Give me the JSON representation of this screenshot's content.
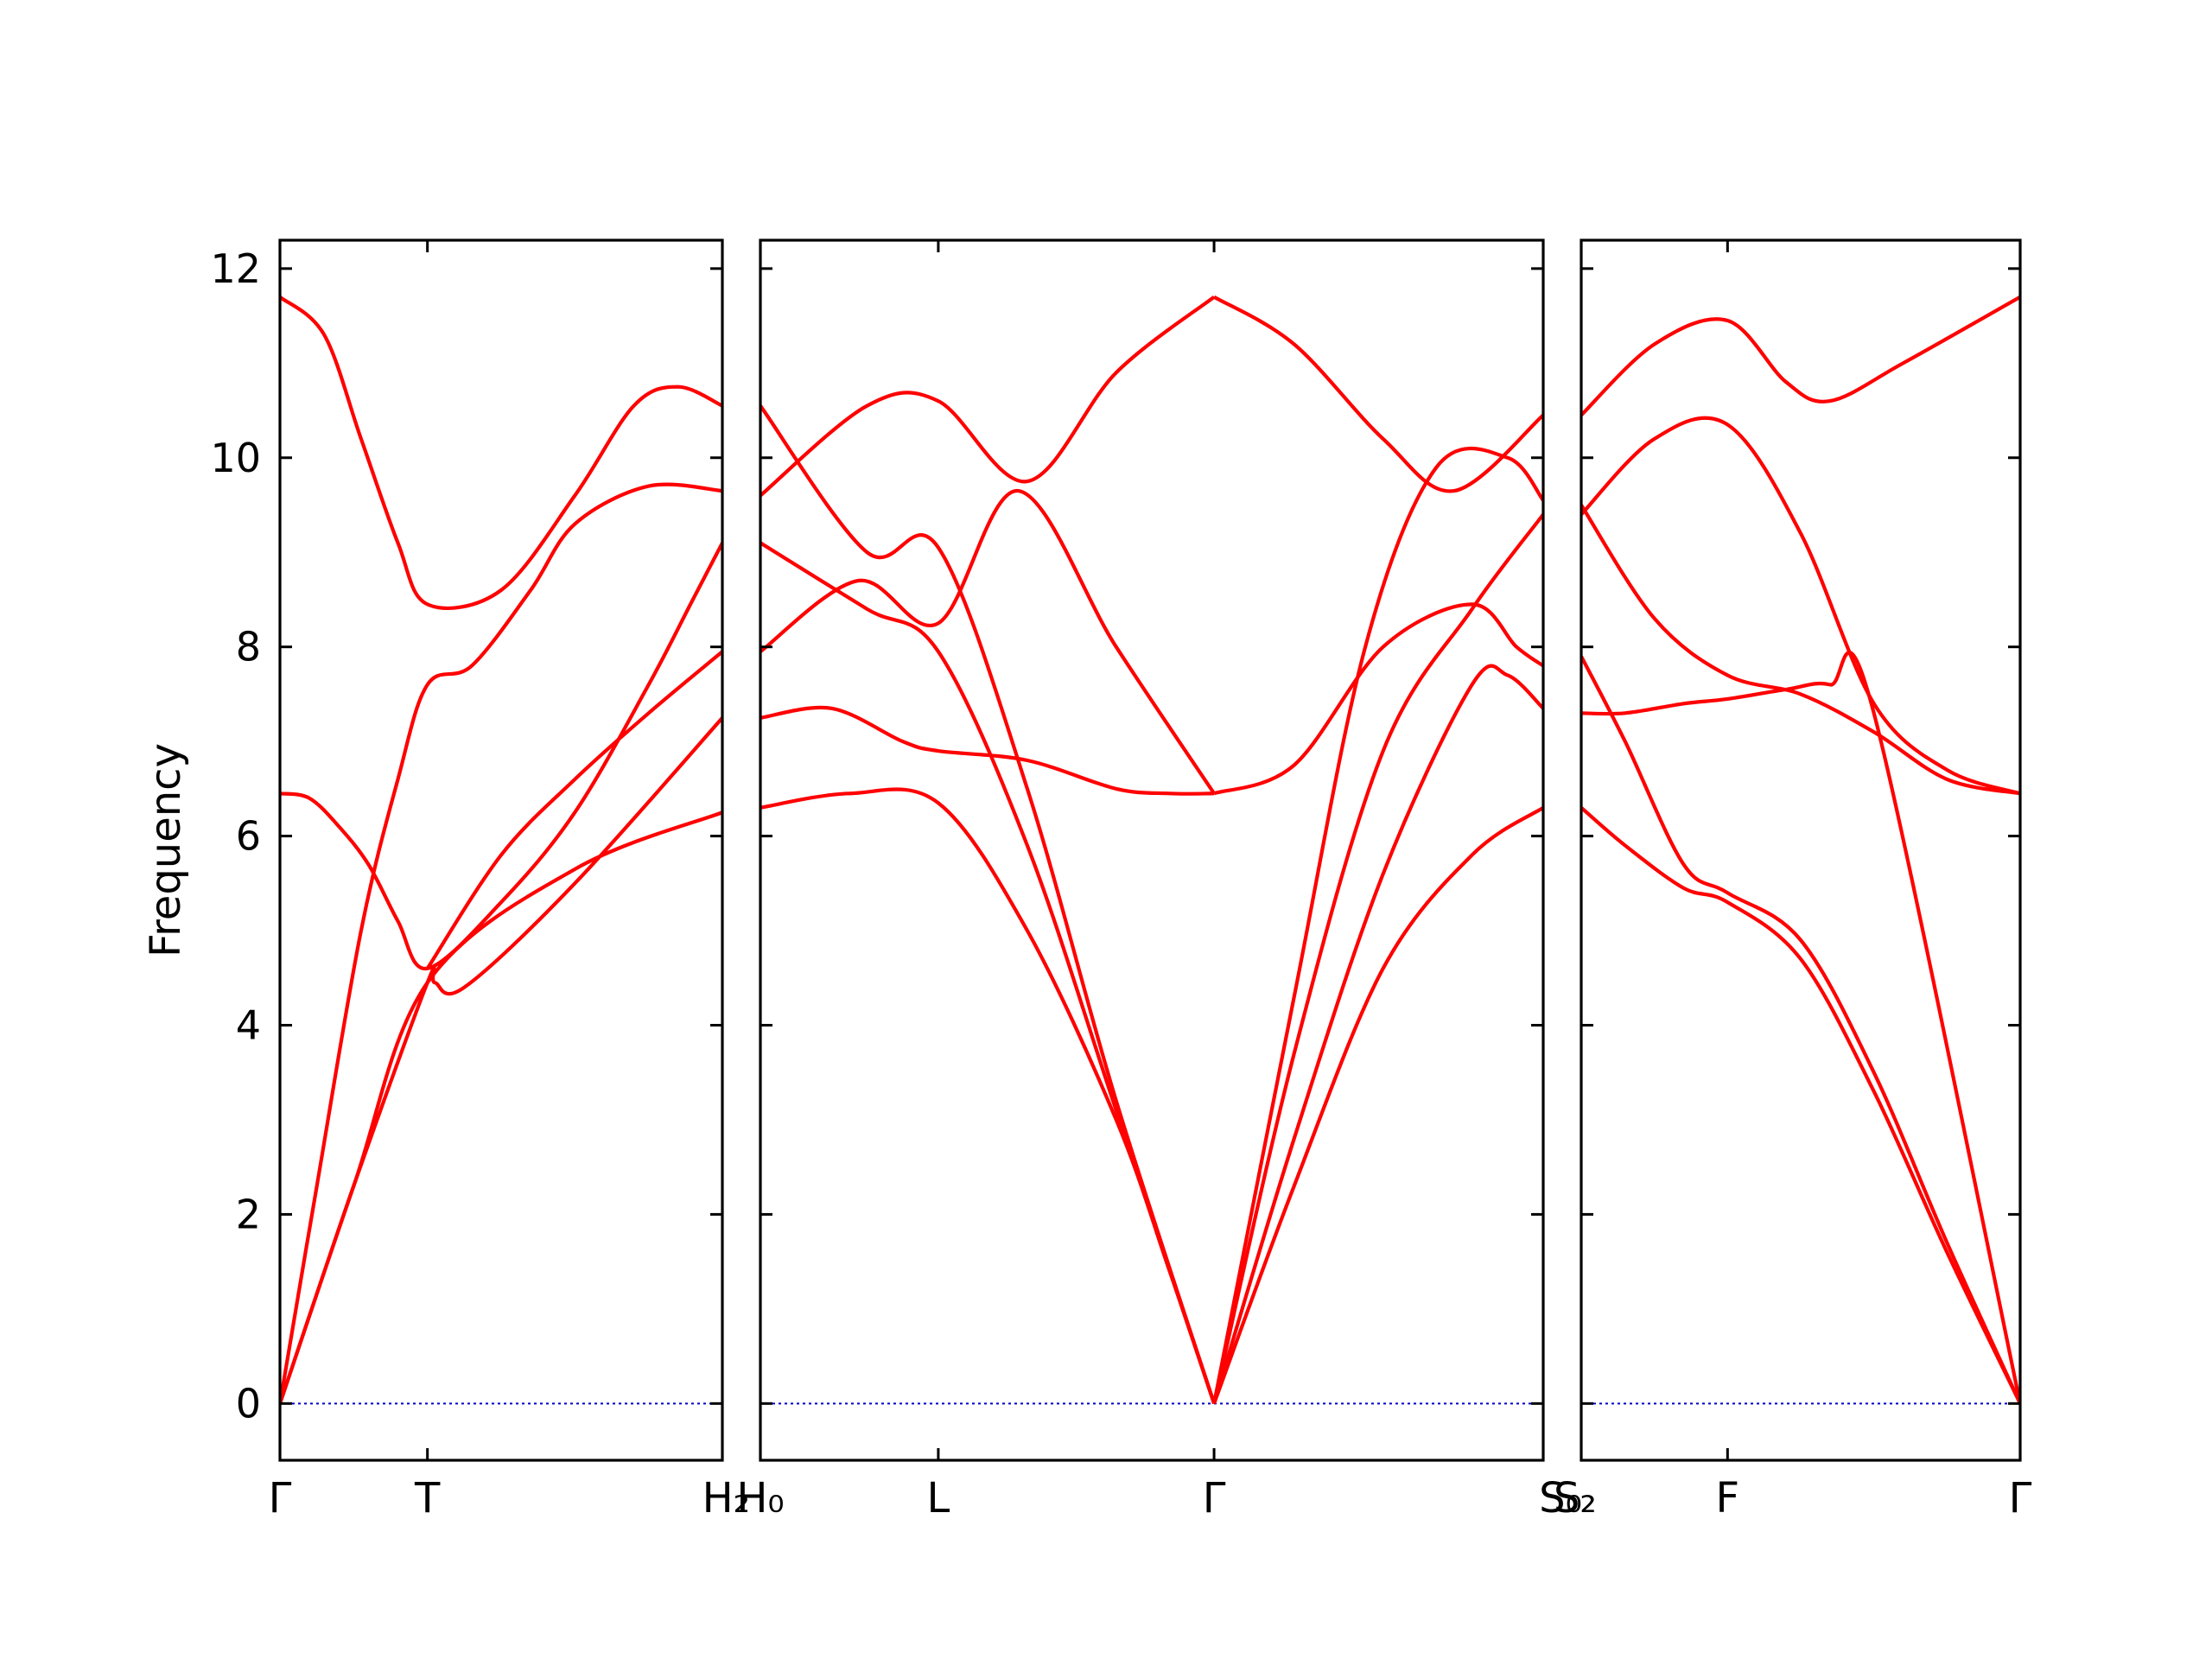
{
  "chart_data": {
    "type": "line",
    "ylabel": "Frequency",
    "ylim": [
      -0.6,
      12.3
    ],
    "yticks": [
      0,
      2,
      4,
      6,
      8,
      10,
      12
    ],
    "zero_line_color": "#0000cc",
    "band_color": "#ff0000",
    "grid": false,
    "panels": [
      {
        "xticks": [
          {
            "x": 0.0,
            "label": "Γ"
          },
          {
            "x": 1.0,
            "label": "T"
          },
          {
            "x": 3.0,
            "label": "H₂"
          }
        ],
        "bands": [
          {
            "x": [
              0,
              0.5,
              1.0,
              2.0,
              3.0
            ],
            "y": [
              0,
              2.3,
              4.45,
              5.65,
              6.25
            ]
          },
          {
            "x": [
              0,
              0.5,
              1.0,
              1.05,
              1.25,
              2.0,
              3.0
            ],
            "y": [
              0,
              2.3,
              4.45,
              4.45,
              4.4,
              5.5,
              7.25
            ]
          },
          {
            "x": [
              0,
              0.2,
              0.4,
              0.6,
              0.8,
              1.0,
              1.5,
              2.0,
              2.5,
              2.8,
              3.0
            ],
            "y": [
              6.45,
              6.4,
              6.1,
              5.7,
              5.1,
              4.6,
              5.3,
              6.25,
              7.6,
              8.5,
              9.1
            ]
          },
          {
            "x": [
              0,
              0.25,
              0.55,
              0.8,
              1.0,
              1.3,
              1.7,
              2.0,
              2.5,
              3.0
            ],
            "y": [
              0,
              2.3,
              5.0,
              6.6,
              7.6,
              7.8,
              8.6,
              9.3,
              9.7,
              9.65
            ]
          },
          {
            "x": [
              0,
              0.3,
              0.55,
              0.8,
              1.0,
              1.5,
              2.0,
              2.4,
              2.7,
              3.0
            ],
            "y": [
              11.7,
              11.3,
              10.2,
              9.1,
              8.45,
              8.6,
              9.6,
              10.55,
              10.75,
              10.55
            ]
          },
          {
            "x": [
              1.0,
              1.5,
              2.0,
              2.5,
              3.0
            ],
            "y": [
              4.6,
              5.8,
              6.6,
              7.3,
              7.95
            ]
          }
        ]
      },
      {
        "xticks": [
          {
            "x": 0.0,
            "label": "H₀"
          },
          {
            "x": 1.0,
            "label": "L"
          },
          {
            "x": 2.55,
            "label": "Γ"
          },
          {
            "x": 4.4,
            "label": "S₀"
          }
        ],
        "bands": [
          {
            "x": [
              0,
              0.5,
              1.0,
              1.5,
              2.0,
              2.3,
              2.55
            ],
            "y": [
              6.3,
              6.45,
              6.35,
              5.0,
              3.0,
              1.4,
              0
            ]
          },
          {
            "x": [
              0,
              0.4,
              0.8,
              1.0,
              1.5,
              2.0,
              2.3,
              2.55
            ],
            "y": [
              7.25,
              7.35,
              7.0,
              6.9,
              6.8,
              6.5,
              6.45,
              6.45
            ]
          },
          {
            "x": [
              0,
              0.6,
              1.0,
              1.5,
              2.0,
              2.55
            ],
            "y": [
              9.6,
              10.55,
              10.6,
              9.75,
              10.9,
              11.7
            ]
          },
          {
            "x": [
              0,
              0.6,
              1.0,
              1.5,
              2.0,
              2.55
            ],
            "y": [
              10.55,
              9.0,
              9.05,
              6.5,
              3.2,
              0
            ]
          },
          {
            "x": [
              0,
              0.6,
              1.0,
              1.5,
              2.0,
              2.55
            ],
            "y": [
              9.1,
              8.4,
              7.95,
              5.9,
              3.1,
              0
            ]
          },
          {
            "x": [
              0,
              0.55,
              1.0,
              1.45,
              2.0,
              2.55
            ],
            "y": [
              7.95,
              8.7,
              8.25,
              9.65,
              8.0,
              6.45
            ]
          },
          {
            "x": [
              2.55,
              3.0,
              3.5,
              3.9,
              4.4
            ],
            "y": [
              11.7,
              11.2,
              10.2,
              9.65,
              10.45
            ]
          },
          {
            "x": [
              2.55,
              3.0,
              3.4,
              3.8,
              4.2,
              4.4
            ],
            "y": [
              0,
              4.3,
              8.0,
              9.9,
              10.0,
              9.55
            ]
          },
          {
            "x": [
              2.55,
              3.0,
              3.5,
              4.0,
              4.4
            ],
            "y": [
              0,
              3.7,
              6.9,
              8.4,
              9.4
            ]
          },
          {
            "x": [
              2.55,
              3.0,
              3.5,
              4.0,
              4.25,
              4.4
            ],
            "y": [
              6.45,
              6.75,
              8.0,
              8.45,
              8.0,
              7.8
            ]
          },
          {
            "x": [
              2.55,
              3.0,
              3.5,
              4.0,
              4.2,
              4.4
            ],
            "y": [
              0,
              2.8,
              5.6,
              7.6,
              7.7,
              7.35
            ]
          },
          {
            "x": [
              2.55,
              3.0,
              3.5,
              4.0,
              4.4
            ],
            "y": [
              0,
              2.3,
              4.6,
              5.8,
              6.3
            ]
          }
        ]
      },
      {
        "xticks": [
          {
            "x": 0.0,
            "label": "S₂"
          },
          {
            "x": 1.0,
            "label": "F"
          },
          {
            "x": 3.0,
            "label": "Γ"
          }
        ],
        "bands": [
          {
            "x": [
              0,
              0.5,
              1.0,
              1.4,
              1.7,
              2.2,
              3.0
            ],
            "y": [
              10.45,
              11.2,
              11.45,
              10.8,
              10.6,
              11.0,
              11.7
            ]
          },
          {
            "x": [
              0,
              0.5,
              1.0,
              1.5,
              2.0,
              2.5,
              3.0
            ],
            "y": [
              9.4,
              10.2,
              10.35,
              9.2,
              7.4,
              6.7,
              6.45
            ]
          },
          {
            "x": [
              0,
              0.5,
              1.0,
              1.5,
              2.0,
              2.5,
              3.0
            ],
            "y": [
              9.5,
              8.3,
              7.7,
              7.5,
              7.1,
              6.6,
              6.45
            ]
          },
          {
            "x": [
              0,
              0.3,
              0.7,
              1.0,
              1.4,
              1.7,
              2.0,
              3.0
            ],
            "y": [
              7.3,
              7.3,
              7.4,
              7.45,
              7.55,
              7.6,
              7.3,
              0
            ]
          },
          {
            "x": [
              0,
              0.3,
              0.7,
              1.0,
              1.5,
              2.0,
              2.5,
              3.0
            ],
            "y": [
              7.9,
              7.0,
              5.7,
              5.4,
              4.9,
              3.5,
              1.7,
              0
            ]
          },
          {
            "x": [
              0,
              0.3,
              0.7,
              1.0,
              1.5,
              2.0,
              2.5,
              3.0
            ],
            "y": [
              6.3,
              5.9,
              5.45,
              5.3,
              4.7,
              3.3,
              1.6,
              0
            ]
          }
        ]
      }
    ]
  }
}
